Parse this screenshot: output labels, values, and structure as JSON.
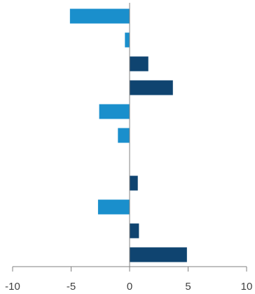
{
  "chart_data": {
    "type": "bar",
    "orientation": "horizontal",
    "title": "",
    "xlabel": "",
    "ylabel": "",
    "xlim": [
      -10,
      10
    ],
    "xticks": [
      -10,
      -5,
      0,
      5,
      10
    ],
    "xtick_labels": [
      "-10",
      "-5",
      "0",
      "5",
      "10"
    ],
    "grid": false,
    "legend": "none",
    "bars": [
      {
        "slot": 0,
        "value": -5.1,
        "color": "#1a8fcc"
      },
      {
        "slot": 1,
        "value": -0.4,
        "color": "#1a8fcc"
      },
      {
        "slot": 2,
        "value": 1.6,
        "color": "#0f4470"
      },
      {
        "slot": 3,
        "value": 3.7,
        "color": "#0f4470"
      },
      {
        "slot": 4,
        "value": -2.6,
        "color": "#1a8fcc"
      },
      {
        "slot": 5,
        "value": -1.0,
        "color": "#1a8fcc"
      },
      {
        "slot": 6,
        "value": null,
        "color": "#1a8fcc"
      },
      {
        "slot": 7,
        "value": 0.7,
        "color": "#0f4470"
      },
      {
        "slot": 8,
        "value": -2.7,
        "color": "#1a8fcc"
      },
      {
        "slot": 9,
        "value": 0.8,
        "color": "#0f4470"
      },
      {
        "slot": 10,
        "value": 4.9,
        "color": "#0f4470"
      }
    ],
    "colors": {
      "negative": "#1a8fcc",
      "positive": "#0f4470",
      "axis": "#808080",
      "ticks": "#404040"
    }
  }
}
